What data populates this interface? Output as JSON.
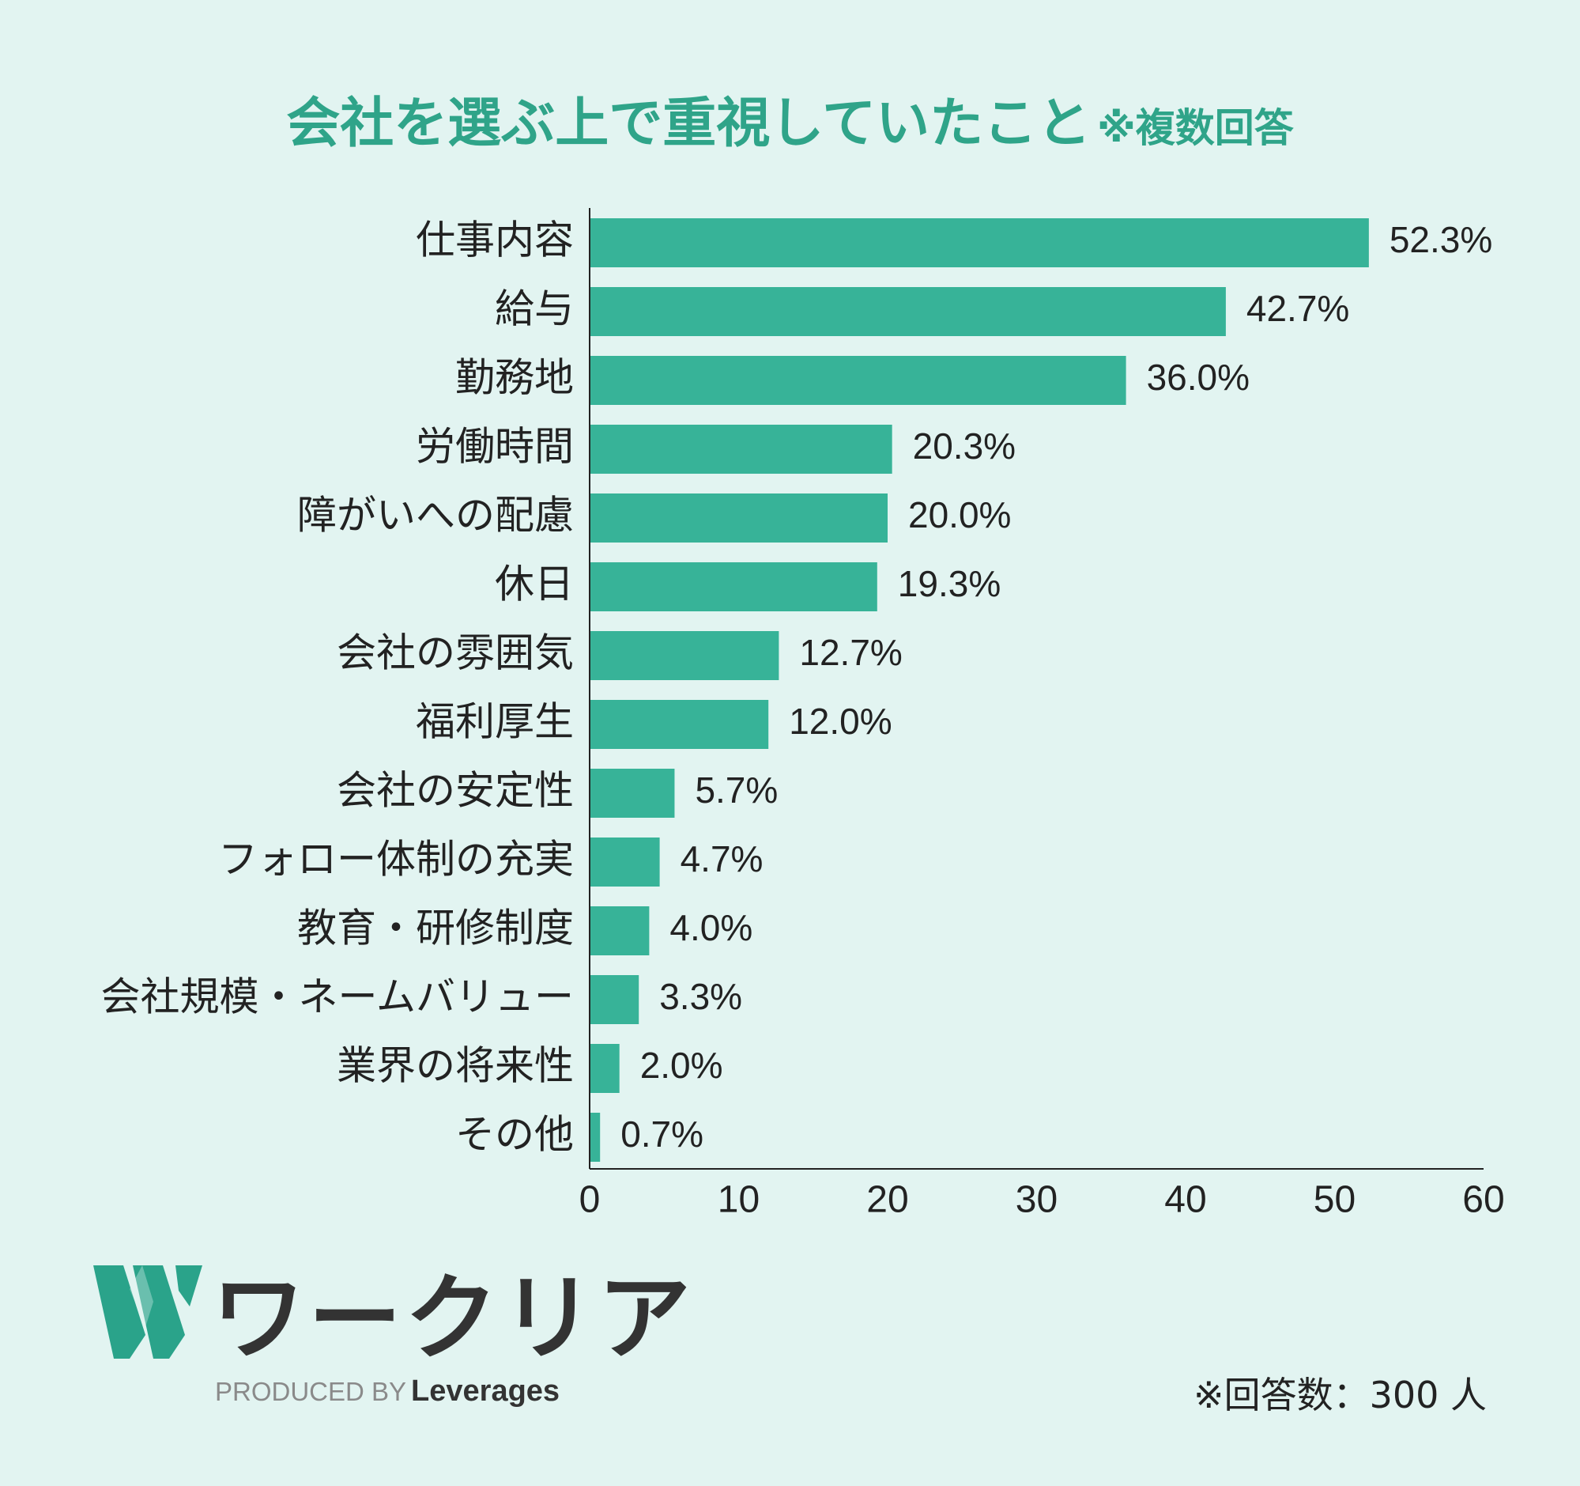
{
  "title": {
    "main": "会社を選ぶ上で重視していたこと",
    "note": "※複数回答"
  },
  "chart_data": {
    "type": "bar",
    "orientation": "horizontal",
    "categories": [
      "仕事内容",
      "給与",
      "勤務地",
      "労働時間",
      "障がいへの配慮",
      "休日",
      "会社の雰囲気",
      "福利厚生",
      "会社の安定性",
      "フォロー体制の充実",
      "教育・研修制度",
      "会社規模・ネームバリュー",
      "業界の将来性",
      "その他"
    ],
    "values": [
      52.3,
      42.7,
      36.0,
      20.3,
      20.0,
      19.3,
      12.7,
      12.0,
      5.7,
      4.7,
      4.0,
      3.3,
      2.0,
      0.7
    ],
    "value_labels": [
      "52.3%",
      "42.7%",
      "36.0%",
      "20.3%",
      "20.0%",
      "19.3%",
      "12.7%",
      "12.0%",
      "5.7%",
      "4.7%",
      "4.0%",
      "3.3%",
      "2.0%",
      "0.7%"
    ],
    "xlim": [
      0,
      60
    ],
    "x_ticks": [
      0,
      10,
      20,
      30,
      40,
      50,
      60
    ],
    "bar_color": "#37b398",
    "grid": false
  },
  "logo": {
    "wordmark": "ワークリア",
    "produced_by": "PRODUCED BY",
    "brand": "Leverages"
  },
  "footnote": "※回答数：300 人",
  "colors": {
    "background": "#e2f4f1",
    "accent": "#2fa489",
    "bar": "#37b398",
    "logo_mark": "#2aa38a"
  },
  "icons": {
    "logo_mark": "w-logo-icon"
  }
}
